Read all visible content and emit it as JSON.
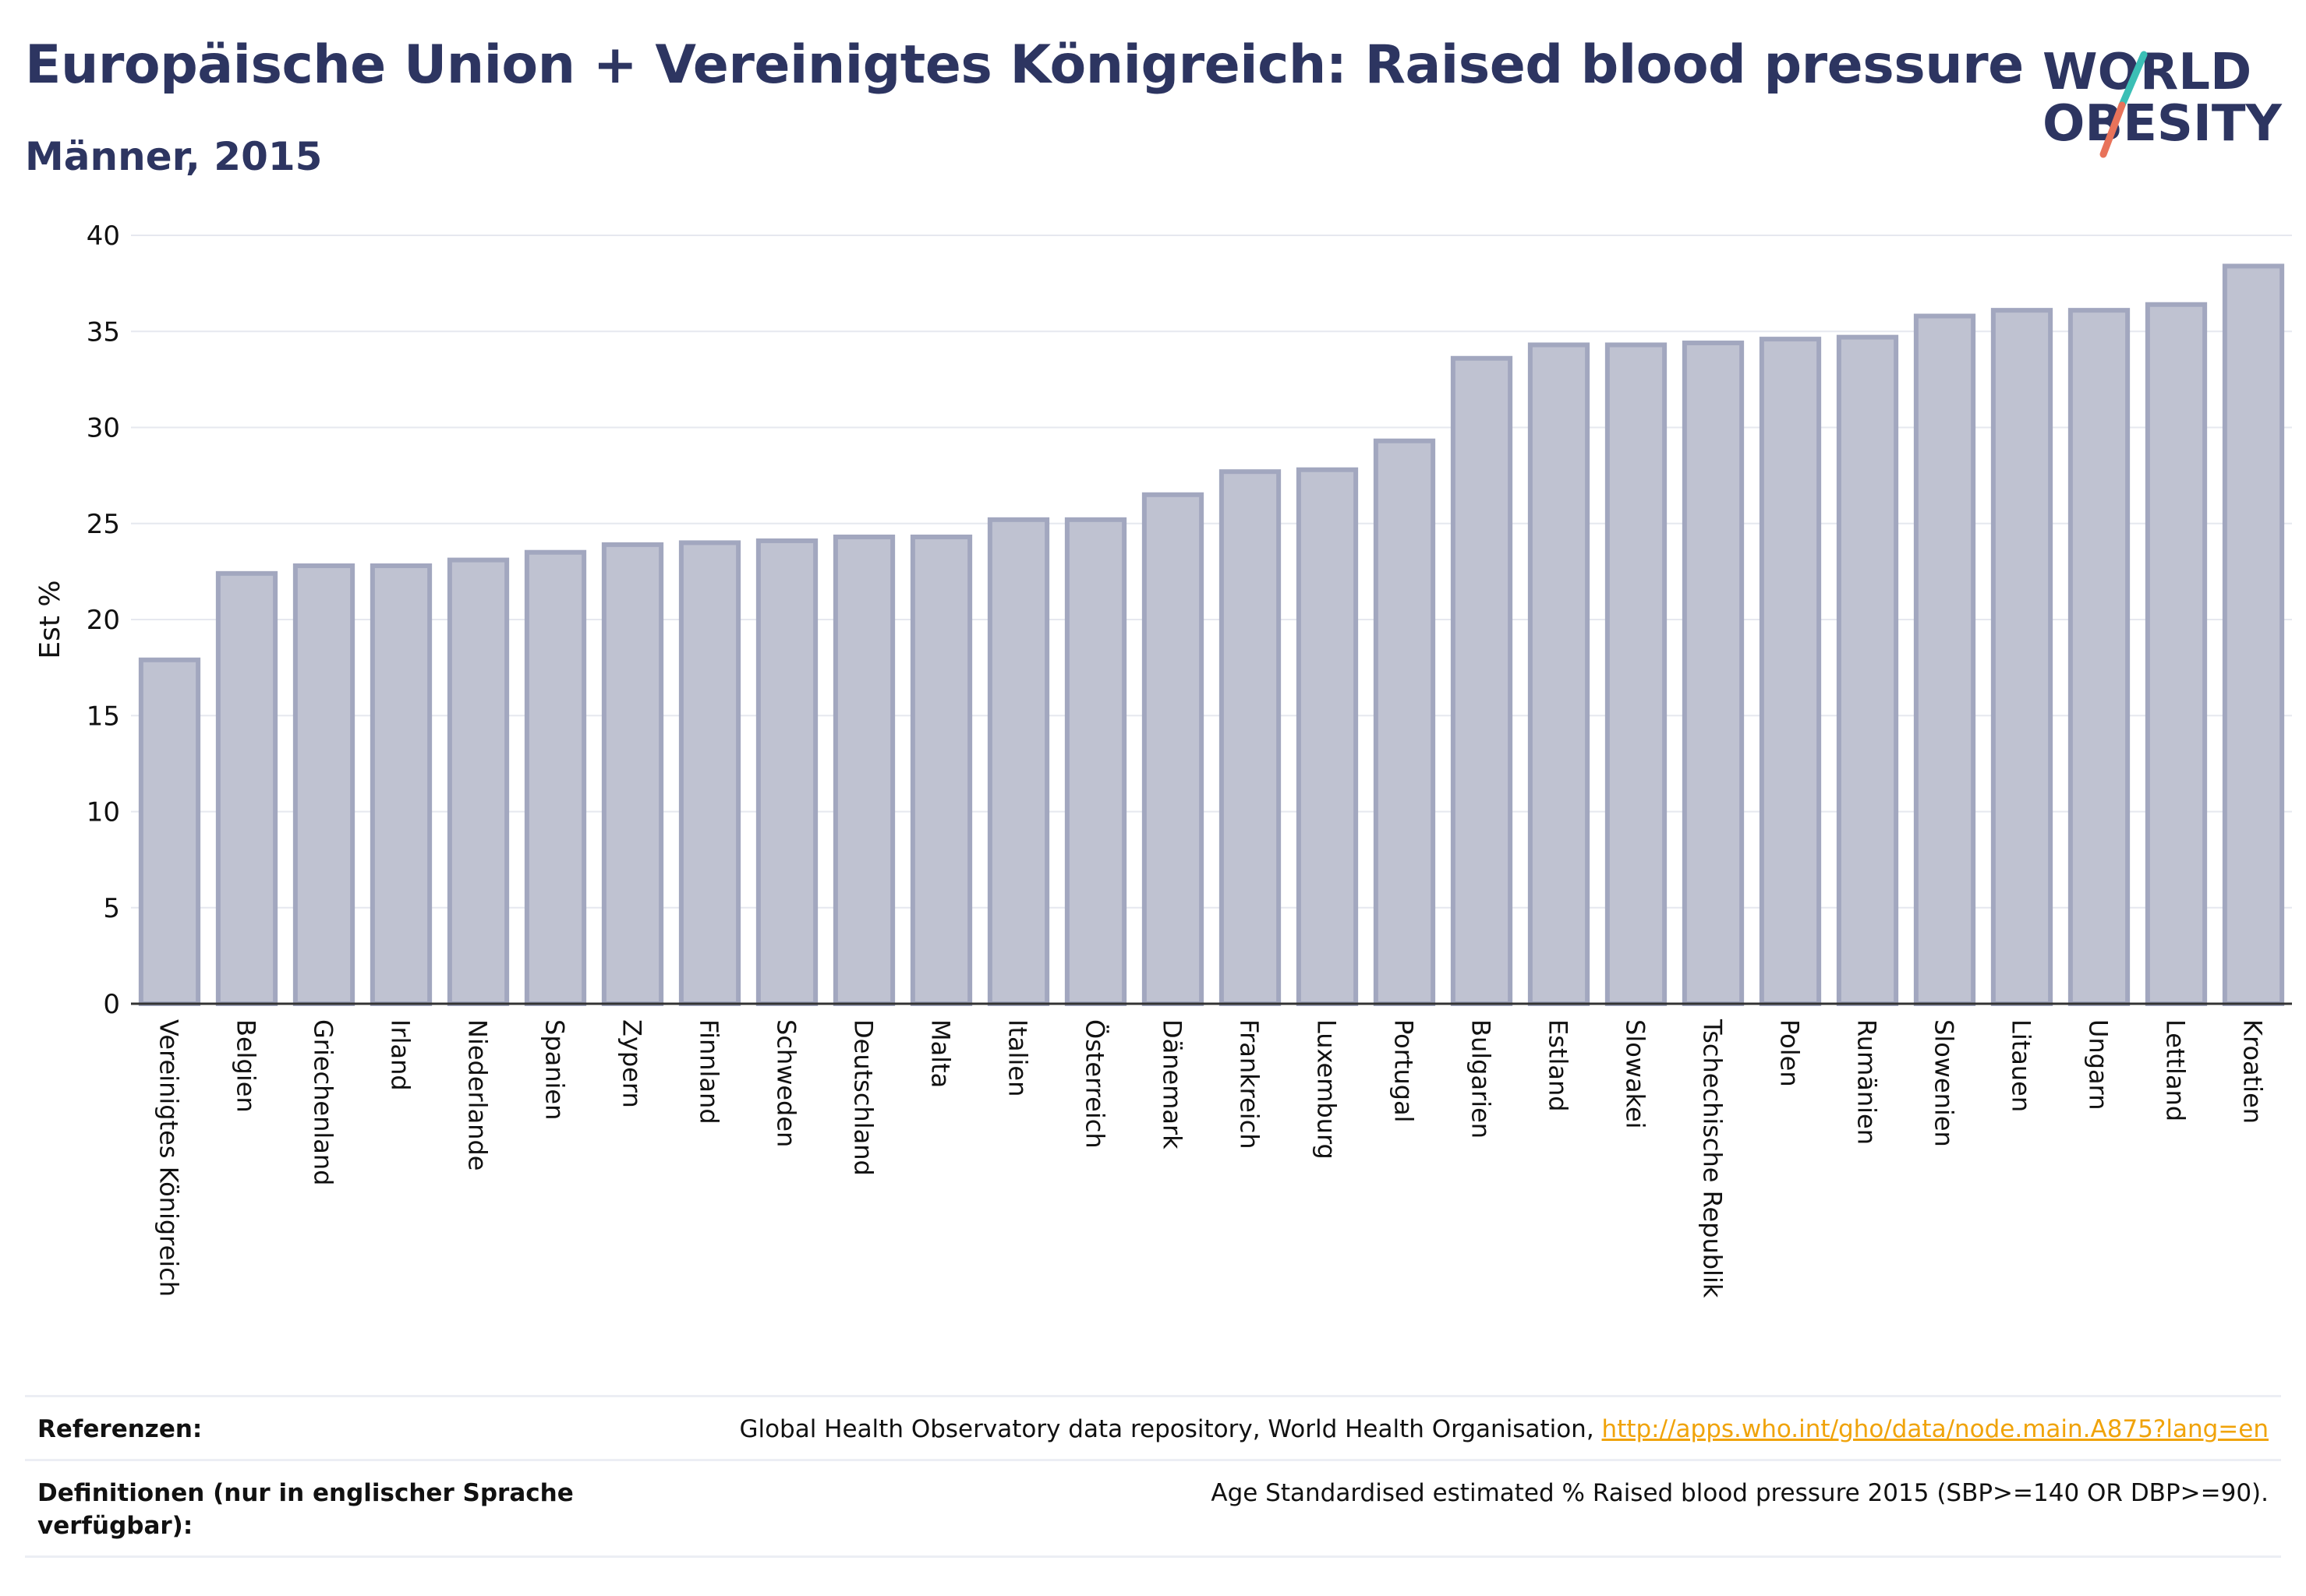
{
  "header": {
    "title": "Europäische Union + Vereinigtes Königreich: Raised blood pressure",
    "subtitle": "Männer, 2015"
  },
  "logo": {
    "line1": "WORLD",
    "line2": "OBESITY",
    "colors": {
      "text": "#2d3561",
      "slash_top": "#3bbfb5",
      "slash_bottom": "#e8735a"
    }
  },
  "chart_data": {
    "type": "bar",
    "ylabel": "Est %",
    "xlabel": "",
    "ylim": [
      0,
      40
    ],
    "yticks": [
      0,
      5,
      10,
      15,
      20,
      25,
      30,
      35,
      40
    ],
    "grid": true,
    "bar_fill": "#bfc2d1",
    "bar_stroke": "#a2a7bf",
    "categories": [
      "Vereinigtes Königreich",
      "Belgien",
      "Griechenland",
      "Irland",
      "Niederlande",
      "Spanien",
      "Zypern",
      "Finnland",
      "Schweden",
      "Deutschland",
      "Malta",
      "Italien",
      "Österreich",
      "Dänemark",
      "Frankreich",
      "Luxemburg",
      "Portugal",
      "Bulgarien",
      "Estland",
      "Slowakei",
      "Tschechische Republik",
      "Polen",
      "Rumänien",
      "Slowenien",
      "Litauen",
      "Ungarn",
      "Lettland",
      "Kroatien"
    ],
    "values": [
      17.9,
      22.4,
      22.8,
      22.8,
      23.1,
      23.5,
      23.9,
      24.0,
      24.1,
      24.3,
      24.3,
      25.2,
      25.2,
      26.5,
      27.7,
      27.8,
      29.3,
      33.6,
      34.3,
      34.3,
      34.4,
      34.6,
      34.7,
      35.8,
      36.1,
      36.1,
      36.4,
      38.4
    ]
  },
  "footer": {
    "references_label": "Referenzen:",
    "references_text": "Global Health Observatory data repository, World Health Organisation,",
    "references_link": "http://apps.who.int/gho/data/node.main.A875?lang=en",
    "definitions_label": "Definitionen (nur in englischer Sprache verfügbar):",
    "definitions_text": "Age Standardised estimated % Raised blood pressure 2015 (SBP>=140 OR DBP>=90)."
  }
}
